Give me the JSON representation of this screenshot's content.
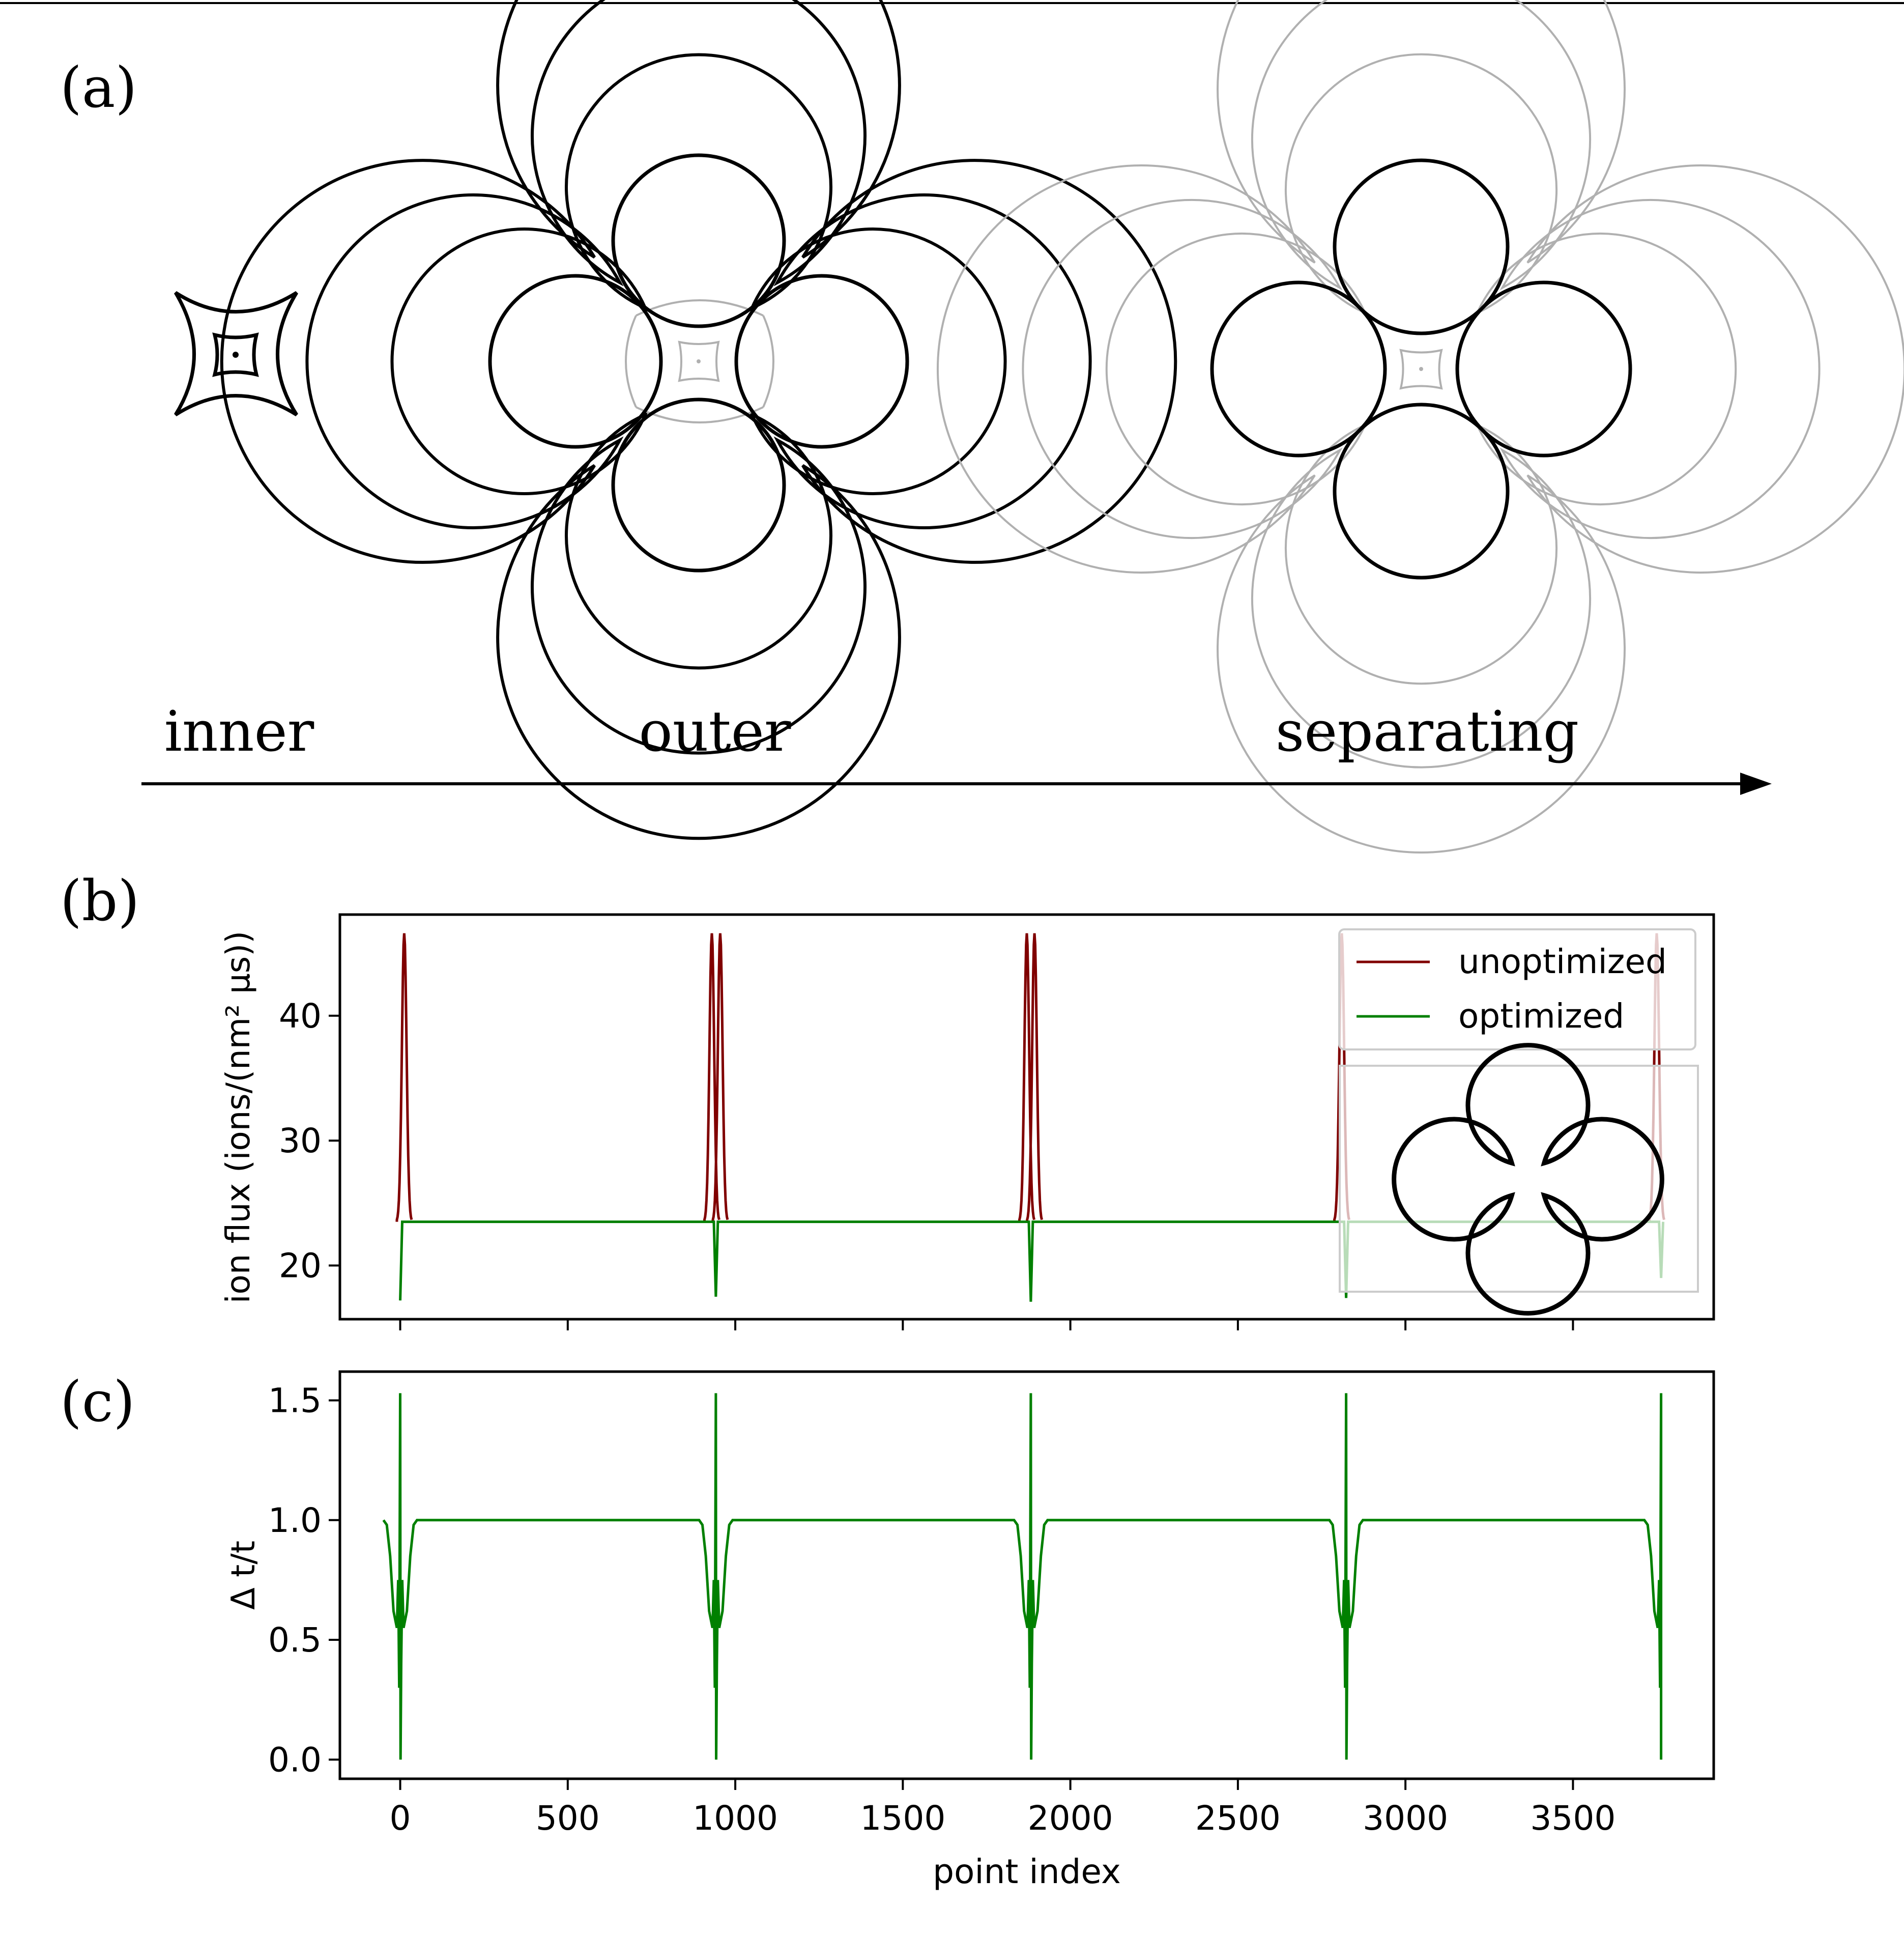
{
  "panel_labels": {
    "a": "(a)",
    "b": "(b)",
    "c": "(c)"
  },
  "stages": [
    "inner",
    "outer",
    "separating"
  ],
  "colors": {
    "unoptimized": "#800000",
    "optimized": "#008000",
    "contour": "#000000",
    "faded": "#b0b0b0"
  },
  "chart_data": [
    {
      "type": "line",
      "panel": "b",
      "xlabel": "",
      "ylabel": "ion flux (ions/(nm² µs))",
      "xlim": [
        -180,
        3920
      ],
      "ylim": [
        15.7,
        48.1
      ],
      "xticks": [
        0,
        500,
        1000,
        1500,
        2000,
        2500,
        3000,
        3500
      ],
      "yticks": [
        20,
        30,
        40
      ],
      "ytick_labels": [
        "20",
        "30",
        "40"
      ],
      "legend": {
        "position": "top-right",
        "entries": [
          "unoptimized",
          "optimized"
        ]
      },
      "inset": "cloverleaf contour shape (top-right area)",
      "series": [
        {
          "name": "unoptimized",
          "baseline": 23.5,
          "peaks": [
            {
              "x": 12,
              "y": 46.6
            },
            {
              "x": 930,
              "y": 46.6
            },
            {
              "x": 955,
              "y": 46.6
            },
            {
              "x": 1870,
              "y": 46.6
            },
            {
              "x": 1893,
              "y": 46.6
            },
            {
              "x": 2810,
              "y": 46.6
            },
            {
              "x": 3750,
              "y": 46.6
            }
          ]
        },
        {
          "name": "optimized",
          "baseline": 23.5,
          "dips": [
            {
              "x": 0,
              "y": 17.2
            },
            {
              "x": 942,
              "y": 17.5
            },
            {
              "x": 1882,
              "y": 17.1
            },
            {
              "x": 2823,
              "y": 17.4
            },
            {
              "x": 3763,
              "y": 19.0
            }
          ]
        }
      ]
    },
    {
      "type": "line",
      "panel": "c",
      "xlabel": "point index",
      "ylabel": "Δ t/t",
      "xlim": [
        -180,
        3920
      ],
      "ylim": [
        -0.08,
        1.62
      ],
      "xticks": [
        0,
        500,
        1000,
        1500,
        2000,
        2500,
        3000,
        3500
      ],
      "xtick_labels": [
        "0",
        "500",
        "1000",
        "1500",
        "2000",
        "2500",
        "3000",
        "3500"
      ],
      "yticks": [
        0.0,
        0.5,
        1.0,
        1.5
      ],
      "ytick_labels": [
        "0.0",
        "0.5",
        "1.0",
        "1.5"
      ],
      "series": [
        {
          "name": "optimized",
          "plateau": 1.0,
          "spike_positions": [
            0,
            942,
            1882,
            2823,
            3763
          ],
          "spike_max": 1.53,
          "spike_min": 0.0
        }
      ]
    }
  ]
}
